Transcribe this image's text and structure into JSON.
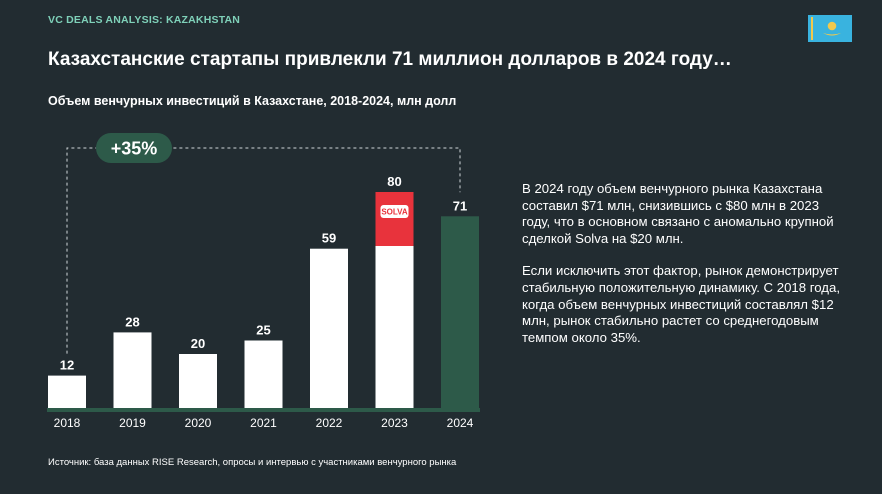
{
  "header": {
    "kicker": "VC DEALS ANALYSIS: KAZAKHSTAN",
    "flag_icon": "kazakhstan-flag-icon",
    "title": "Казахстанские стартапы привлекли 71 миллион долларов в 2024 году…",
    "subtitle": "Объем венчурных инвестиций в Казахстане, 2018-2024, млн долл"
  },
  "chart_data": {
    "type": "bar",
    "title": "Объем венчурных инвестиций в Казахстане, 2018-2024, млн долл",
    "categories": [
      "2018",
      "2019",
      "2020",
      "2021",
      "2022",
      "2023",
      "2024"
    ],
    "values": [
      12,
      28,
      20,
      25,
      59,
      80,
      71
    ],
    "segments_2023": {
      "other": 60,
      "solva": 20
    },
    "solva_logo": "SOLVA",
    "growth_annotation": "+35%",
    "ylim": [
      0,
      80
    ],
    "grid": false,
    "colors": {
      "bar": "#ffffff",
      "highlight_bar": "#2d5a49",
      "solva_segment": "#e8333c",
      "baseline": "#2d5a49",
      "growth_pill": "#2d5a49"
    }
  },
  "commentary": {
    "paragraph1": "В 2024 году объем венчурного рынка Казахстана составил $71 млн, снизившись с $80 млн в 2023 году, что в основном связано с аномально крупной сделкой Solva на $20 млн.",
    "paragraph2": "Если исключить этот фактор, рынок демонстрирует стабильную положительную динамику. С 2018 года, когда объем венчурных инвестиций составлял $12 млн, рынок стабильно растет со среднегодовым темпом около 35%."
  },
  "footer": {
    "source": "Источник: база данных RISE Research, опросы и интервью с участниками венчурного рынка"
  }
}
